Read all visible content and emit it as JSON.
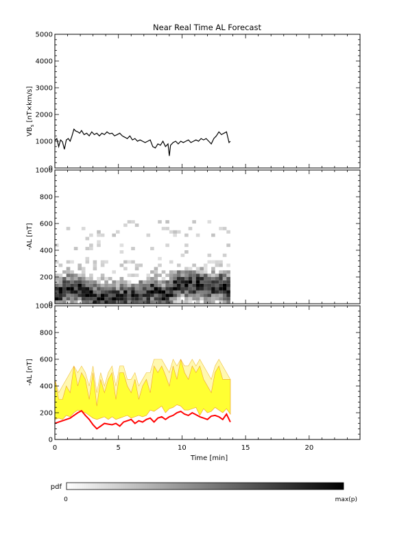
{
  "title": "Near Real Time AL Forecast",
  "chart_data": [
    {
      "type": "line",
      "ylabel": "VB",
      "ylabel_sub": "s",
      "ylabel_unit": " [nT×km/s]",
      "xlim": [
        0,
        24
      ],
      "ylim": [
        0,
        5000
      ],
      "yticks": [
        "0",
        "1000",
        "2000",
        "3000",
        "4000",
        "5000"
      ],
      "series": [
        {
          "x": [
            0.0,
            0.15,
            0.3,
            0.45,
            0.6,
            0.75,
            0.9,
            1.05,
            1.2,
            1.35,
            1.5,
            1.65,
            1.8,
            1.95,
            2.1,
            2.3,
            2.5,
            2.7,
            2.9,
            3.1,
            3.3,
            3.5,
            3.7,
            3.9,
            4.1,
            4.3,
            4.5,
            4.7,
            4.9,
            5.1,
            5.3,
            5.5,
            5.7,
            5.9,
            6.1,
            6.3,
            6.5,
            6.7,
            6.9,
            7.1,
            7.3,
            7.5,
            7.7,
            7.9,
            8.1,
            8.3,
            8.5,
            8.7,
            8.9,
            9.0,
            9.1,
            9.3,
            9.5,
            9.7,
            9.9,
            10.1,
            10.3,
            10.5,
            10.7,
            10.9,
            11.1,
            11.3,
            11.5,
            11.7,
            11.9,
            12.1,
            12.3,
            12.5,
            12.7,
            12.9,
            13.1,
            13.3,
            13.5,
            13.7,
            13.8
          ],
          "y": [
            1020,
            1100,
            800,
            1050,
            980,
            700,
            1050,
            1100,
            1000,
            1200,
            1450,
            1380,
            1350,
            1300,
            1400,
            1250,
            1300,
            1200,
            1350,
            1250,
            1300,
            1200,
            1300,
            1250,
            1350,
            1280,
            1300,
            1200,
            1250,
            1300,
            1200,
            1150,
            1100,
            1200,
            1050,
            1100,
            1000,
            1050,
            1000,
            950,
            1000,
            1050,
            800,
            750,
            900,
            850,
            1000,
            800,
            900,
            450,
            850,
            950,
            1000,
            900,
            1000,
            950,
            1000,
            1050,
            950,
            1000,
            1050,
            1000,
            1100,
            1050,
            1100,
            1000,
            900,
            1100,
            1200,
            1350,
            1250,
            1300,
            1350,
            950,
            1000
          ]
        }
      ]
    },
    {
      "type": "heatmap",
      "ylabel": "-AL [nT]",
      "xlim": [
        0,
        24
      ],
      "ylim": [
        0,
        1000
      ],
      "yticks": [
        "0",
        "200",
        "400",
        "600",
        "800",
        "1000"
      ],
      "x_start": 0.0,
      "x_end": 13.8,
      "time_bin": 0.3,
      "al_bin": 25,
      "max_al": 625,
      "ridge": {
        "x": [
          0.0,
          1.0,
          1.6,
          2.0,
          2.5,
          3.0,
          4.0,
          5.0,
          6.0,
          6.5,
          7.0,
          7.5,
          7.8,
          8.2,
          8.6,
          9.0,
          9.5,
          10.0,
          10.5,
          11.0,
          11.5,
          12.0,
          12.5,
          13.0,
          13.5,
          13.8
        ],
        "y": [
          60,
          120,
          110,
          130,
          80,
          50,
          50,
          40,
          60,
          60,
          70,
          80,
          110,
          80,
          60,
          90,
          130,
          150,
          140,
          140,
          150,
          130,
          120,
          140,
          120,
          110
        ]
      }
    },
    {
      "type": "area",
      "ylabel": "-AL [nT]",
      "xlabel": "Time [min]",
      "xlim": [
        0,
        24
      ],
      "ylim": [
        0,
        1000
      ],
      "yticks": [
        "0",
        "200",
        "400",
        "600",
        "800",
        "1000"
      ],
      "xticks": [
        "0",
        "5",
        "10",
        "15",
        "20"
      ],
      "x": [
        0.0,
        0.3,
        0.6,
        0.9,
        1.2,
        1.5,
        1.8,
        2.1,
        2.4,
        2.7,
        3.0,
        3.3,
        3.6,
        3.9,
        4.2,
        4.5,
        4.8,
        5.1,
        5.4,
        5.7,
        6.0,
        6.3,
        6.6,
        6.9,
        7.2,
        7.5,
        7.8,
        8.1,
        8.4,
        8.7,
        9.0,
        9.3,
        9.6,
        9.9,
        10.2,
        10.5,
        10.8,
        11.1,
        11.4,
        11.7,
        12.0,
        12.3,
        12.6,
        12.9,
        13.2,
        13.5,
        13.8
      ],
      "band_lower": [
        150,
        160,
        150,
        180,
        170,
        200,
        220,
        210,
        200,
        180,
        160,
        150,
        160,
        170,
        150,
        170,
        150,
        160,
        170,
        180,
        160,
        170,
        180,
        170,
        180,
        220,
        210,
        230,
        250,
        200,
        230,
        240,
        260,
        250,
        220,
        220,
        230,
        240,
        180,
        230,
        200,
        210,
        240,
        220,
        200,
        230,
        190
      ],
      "band_upper": [
        450,
        300,
        300,
        400,
        350,
        550,
        400,
        500,
        450,
        300,
        500,
        250,
        450,
        350,
        450,
        500,
        300,
        500,
        500,
        400,
        350,
        450,
        300,
        400,
        450,
        350,
        550,
        500,
        550,
        480,
        400,
        550,
        450,
        600,
        500,
        450,
        550,
        500,
        550,
        450,
        400,
        350,
        500,
        550,
        450,
        450,
        450
      ],
      "outer_upper": [
        450,
        350,
        400,
        450,
        500,
        550,
        500,
        550,
        500,
        400,
        550,
        350,
        500,
        400,
        500,
        550,
        400,
        550,
        550,
        450,
        450,
        500,
        400,
        450,
        500,
        500,
        600,
        600,
        600,
        550,
        500,
        600,
        550,
        600,
        550,
        550,
        600,
        550,
        600,
        550,
        500,
        450,
        550,
        600,
        550,
        500,
        450
      ],
      "median": [
        120,
        130,
        140,
        150,
        160,
        180,
        200,
        215,
        180,
        150,
        110,
        80,
        100,
        120,
        115,
        110,
        120,
        100,
        130,
        140,
        150,
        120,
        140,
        130,
        150,
        160,
        130,
        160,
        170,
        150,
        170,
        180,
        200,
        210,
        190,
        180,
        200,
        185,
        170,
        160,
        150,
        175,
        180,
        170,
        150,
        190,
        130
      ]
    }
  ],
  "colorbar": {
    "label": "pdf",
    "min_label": "0",
    "max_label": "max(p)"
  }
}
